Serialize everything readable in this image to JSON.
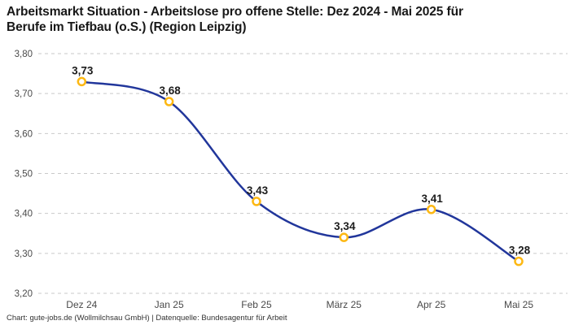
{
  "header": {
    "title_lines": [
      "Arbeitsmarkt Situation - Arbeitslose pro offene Stelle: Dez 2024 - Mai 2025 für",
      "Berufe im Tiefbau (o.S.) (Region Leipzig)"
    ]
  },
  "footer": {
    "credit": "Chart: gute-jobs.de (Wollmilchsau GmbH) | Datenquelle: Bundesagentur für Arbeit"
  },
  "chart_data": {
    "type": "line",
    "title": "Arbeitsmarkt Situation - Arbeitslose pro offene Stelle: Dez 2024 - Mai 2025 für Berufe im Tiefbau (o.S.) (Region Leipzig)",
    "categories": [
      "Dez 24",
      "Jan 25",
      "Feb 25",
      "März 25",
      "Apr 25",
      "Mai 25"
    ],
    "values": [
      3.73,
      3.68,
      3.43,
      3.34,
      3.41,
      3.28
    ],
    "point_labels": [
      "3,73",
      "3,68",
      "3,43",
      "3,34",
      "3,41",
      "3,28"
    ],
    "ylim": [
      3.2,
      3.8
    ],
    "yticks": [
      3.8,
      3.7,
      3.6,
      3.5,
      3.4,
      3.3,
      3.2
    ],
    "ytick_labels": [
      "3,80",
      "3,70",
      "3,60",
      "3,50",
      "3,40",
      "3,30",
      "3,20"
    ],
    "xlabel": "",
    "ylabel": "",
    "grid": "horizontal-dashed",
    "legend": "none",
    "curve": "smooth",
    "colors": {
      "line": "#21369b",
      "marker_stroke": "#fdb813",
      "marker_fill": "#ffffff",
      "grid": "#c9c9c9",
      "axis_text": "#4a4a4a",
      "point_label_text": "#1c1c1c",
      "title_text": "#181818",
      "footer_text": "#333333",
      "background": "#ffffff"
    }
  }
}
